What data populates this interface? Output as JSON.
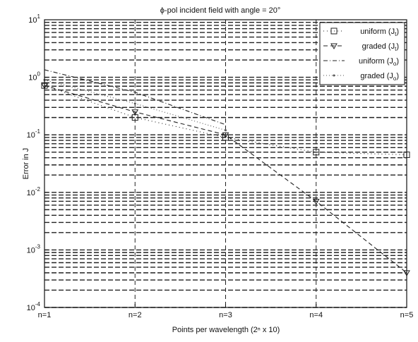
{
  "chart_data": {
    "type": "line",
    "title": "ϕ-pol incident field  with angle = 20°",
    "xlabel": "Points per wavelength (2ⁿ x 10)",
    "ylabel": "Error in J",
    "yscale": "log",
    "ylim": [
      0.0001,
      10
    ],
    "categories": [
      "n=1",
      "n=2",
      "n=3",
      "n=4",
      "n=5"
    ],
    "y_ticks": [
      {
        "base": "10",
        "exp": "1"
      },
      {
        "base": "10",
        "exp": "0"
      },
      {
        "base": "10",
        "exp": "-1"
      },
      {
        "base": "10",
        "exp": "-2"
      },
      {
        "base": "10",
        "exp": "-3"
      },
      {
        "base": "10",
        "exp": "-4"
      }
    ],
    "grid": true,
    "legend_position": "top-right",
    "series": [
      {
        "name": "uniform (Jt)",
        "legend_main": "uniform (J",
        "legend_sub": "t",
        "marker": "square",
        "dash": "1 4",
        "color": "#222222",
        "values": [
          0.72,
          0.2,
          0.09,
          0.05,
          0.045
        ]
      },
      {
        "name": "graded (Jt)",
        "legend_main": "graded (J",
        "legend_sub": "t",
        "marker": "triangle-down",
        "dash": "6 4",
        "color": "#222222",
        "values": [
          0.72,
          0.25,
          0.1,
          0.007,
          0.0004
        ]
      },
      {
        "name": "uniform (Jo)",
        "legend_main": "uniform (J",
        "legend_sub": "o",
        "marker": "none",
        "dash": "6 3 1 3",
        "color": "#222222",
        "values": [
          1.35,
          0.55,
          0.15,
          null,
          null
        ]
      },
      {
        "name": "graded (Jo)",
        "legend_main": "graded (J",
        "legend_sub": "o",
        "marker": "dot",
        "dash": "1 3",
        "color": "#555555",
        "values": [
          0.9,
          0.35,
          0.12,
          null,
          null
        ]
      }
    ]
  }
}
